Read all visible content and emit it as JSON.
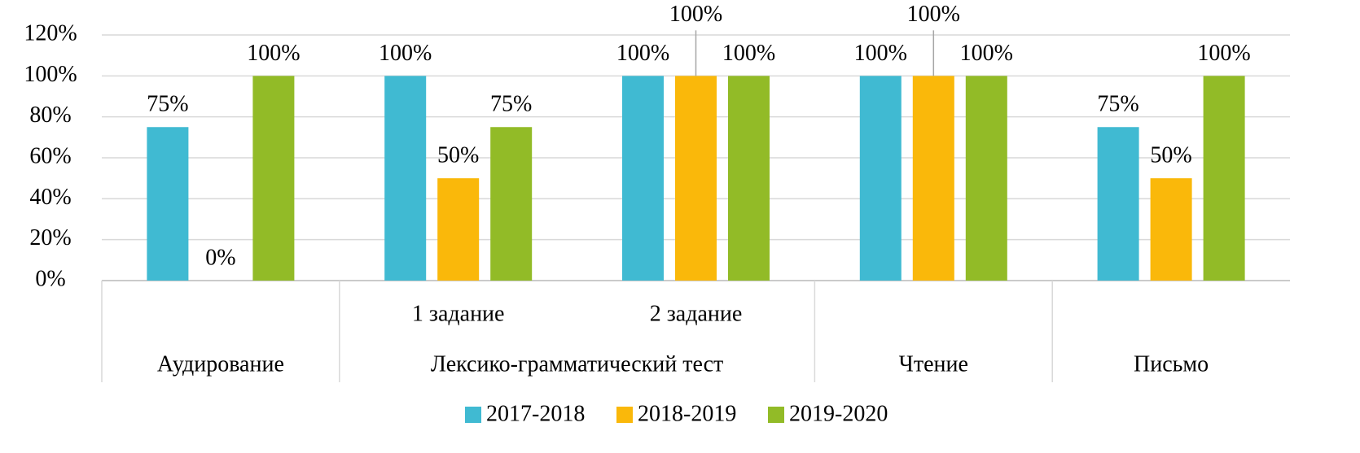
{
  "chart_data": {
    "type": "bar",
    "categories": [
      null,
      "1 задание",
      "2 задание",
      null,
      null
    ],
    "category_groups": [
      {
        "name": "Аудирование",
        "size": 1
      },
      {
        "name": "Лексико-грамматический тест",
        "size": 2
      },
      {
        "name": "Чтение",
        "size": 1
      },
      {
        "name": "Письмо",
        "size": 1
      }
    ],
    "series": [
      {
        "name": "2017-2018",
        "color": "#40bad2",
        "values": [
          75,
          100,
          100,
          100,
          75
        ],
        "value_labels": [
          "75%",
          "100%",
          "100%",
          "100%",
          "75%"
        ]
      },
      {
        "name": "2018-2019",
        "color": "#fab80a",
        "values": [
          0,
          50,
          100,
          100,
          50
        ],
        "value_labels": [
          "0%",
          "50%",
          "100%",
          "100%",
          "50%"
        ]
      },
      {
        "name": "2019-2020",
        "color": "#92bb27",
        "values": [
          100,
          75,
          100,
          100,
          100
        ],
        "value_labels": [
          "100%",
          "75%",
          "100%",
          "100%",
          "100%"
        ]
      }
    ],
    "ylim": [
      0,
      120
    ],
    "yticks": [
      {
        "value": 0,
        "label": "0%"
      },
      {
        "value": 20,
        "label": "20%"
      },
      {
        "value": 40,
        "label": "40%"
      },
      {
        "value": 60,
        "label": "60%"
      },
      {
        "value": 80,
        "label": "80%"
      },
      {
        "value": 100,
        "label": "100%"
      },
      {
        "value": 120,
        "label": "120%"
      }
    ],
    "grid": true,
    "legend": "bottom"
  }
}
